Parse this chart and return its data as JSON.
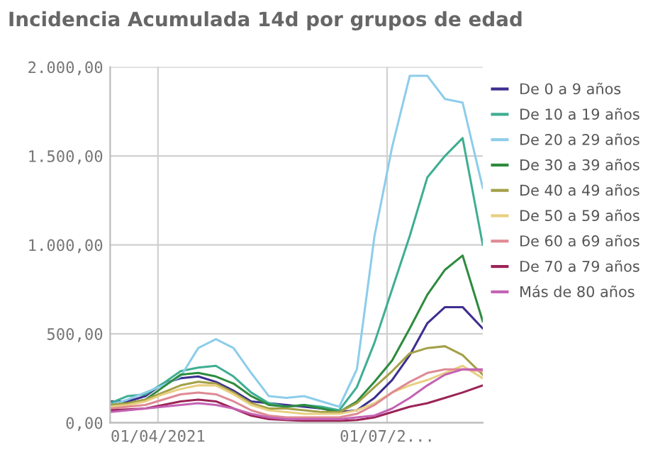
{
  "chart_data": {
    "type": "line",
    "title": "Incidencia Acumulada 14d por grupos de edad",
    "x": [
      "2021-03-13",
      "2021-03-20",
      "2021-03-27",
      "2021-04-03",
      "2021-04-10",
      "2021-04-17",
      "2021-04-24",
      "2021-05-01",
      "2021-05-08",
      "2021-05-15",
      "2021-05-22",
      "2021-05-29",
      "2021-06-05",
      "2021-06-12",
      "2021-06-19",
      "2021-06-26",
      "2021-07-03",
      "2021-07-10",
      "2021-07-17",
      "2021-07-24",
      "2021-07-31",
      "2021-08-08"
    ],
    "series": [
      {
        "name": "De 0 a 9 años",
        "color": "#3d2f8f",
        "values": [
          120,
          120,
          150,
          220,
          250,
          260,
          230,
          180,
          120,
          110,
          100,
          90,
          80,
          60,
          70,
          140,
          240,
          380,
          560,
          650,
          650,
          530
        ]
      },
      {
        "name": "De 10 a 19 años",
        "color": "#3fae92",
        "values": [
          110,
          150,
          160,
          220,
          290,
          310,
          320,
          260,
          170,
          110,
          90,
          100,
          90,
          70,
          200,
          450,
          750,
          1050,
          1380,
          1500,
          1600,
          1000
        ]
      },
      {
        "name": "De 20 a 29 años",
        "color": "#8dcdea",
        "values": [
          100,
          130,
          170,
          210,
          260,
          420,
          470,
          420,
          280,
          150,
          140,
          150,
          120,
          90,
          300,
          1050,
          1550,
          1950,
          1950,
          1820,
          1800,
          1320
        ]
      },
      {
        "name": "De 30 a 39 años",
        "color": "#2e8b3e",
        "values": [
          100,
          110,
          130,
          200,
          270,
          280,
          260,
          220,
          150,
          100,
          90,
          100,
          80,
          60,
          120,
          230,
          350,
          530,
          720,
          860,
          940,
          570
        ]
      },
      {
        "name": "De 40 a 49 años",
        "color": "#a3a048",
        "values": [
          100,
          110,
          130,
          170,
          210,
          230,
          220,
          170,
          110,
          80,
          80,
          70,
          60,
          60,
          110,
          200,
          290,
          390,
          420,
          430,
          380,
          270
        ]
      },
      {
        "name": "De 50 a 59 años",
        "color": "#e8cf80",
        "values": [
          90,
          100,
          120,
          160,
          190,
          210,
          210,
          160,
          100,
          70,
          60,
          50,
          50,
          50,
          70,
          110,
          170,
          210,
          240,
          280,
          320,
          250
        ]
      },
      {
        "name": "De 60 a 69 años",
        "color": "#df8a94",
        "values": [
          80,
          90,
          100,
          130,
          160,
          170,
          160,
          120,
          70,
          40,
          30,
          30,
          30,
          30,
          50,
          100,
          170,
          230,
          280,
          300,
          300,
          290
        ]
      },
      {
        "name": "De 70 a 79 años",
        "color": "#9c2457",
        "values": [
          70,
          75,
          80,
          100,
          120,
          130,
          120,
          80,
          40,
          20,
          15,
          10,
          10,
          10,
          15,
          30,
          60,
          90,
          110,
          140,
          170,
          210
        ]
      },
      {
        "name": "Más de 80 años",
        "color": "#c463b3",
        "values": [
          60,
          70,
          80,
          90,
          100,
          110,
          100,
          80,
          50,
          30,
          20,
          20,
          20,
          20,
          30,
          40,
          80,
          140,
          210,
          270,
          300,
          300
        ]
      }
    ],
    "xlim": [
      "2021-03-13",
      "2021-08-08"
    ],
    "xticks": [
      {
        "value": "2021-04-01",
        "label": "01/04/2021"
      },
      {
        "value": "2021-07-01",
        "label": "01/07/2..."
      }
    ],
    "ylim": [
      0,
      2000
    ],
    "yticks": [
      {
        "value": 0,
        "label": "0,00"
      },
      {
        "value": 500,
        "label": "500,00"
      },
      {
        "value": 1000,
        "label": "1.000,00"
      },
      {
        "value": 1500,
        "label": "1.500,00"
      },
      {
        "value": 2000,
        "label": "2.000,00"
      }
    ],
    "grid": true,
    "legend": "right",
    "line_style": "solid",
    "marker": "none"
  }
}
